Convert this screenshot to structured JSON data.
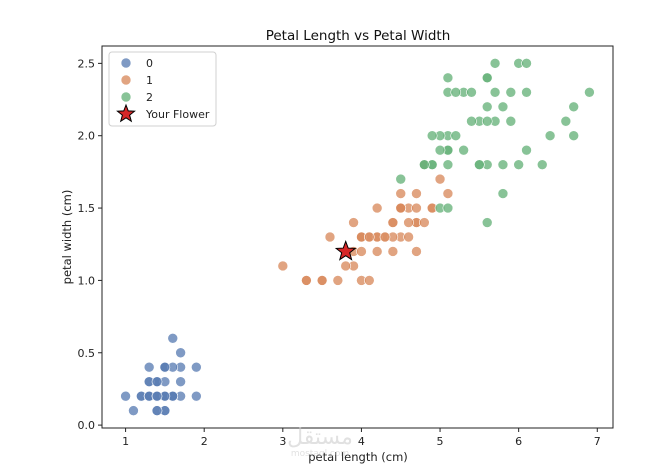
{
  "chart_data": {
    "type": "scatter",
    "title": "Petal Length vs Petal Width",
    "xlabel": "petal length (cm)",
    "ylabel": "petal width (cm)",
    "xlim": [
      0.7,
      7.2
    ],
    "ylim": [
      -0.02,
      2.62
    ],
    "xticks": [
      1,
      2,
      3,
      4,
      5,
      6,
      7
    ],
    "yticks": [
      0.0,
      0.5,
      1.0,
      1.5,
      2.0,
      2.5
    ],
    "xtick_labels": [
      "1",
      "2",
      "3",
      "4",
      "5",
      "6",
      "7"
    ],
    "ytick_labels": [
      "0.0",
      "0.5",
      "1.0",
      "1.5",
      "2.0",
      "2.5"
    ],
    "grid": false,
    "legend_position": "top-left",
    "series": [
      {
        "name": "0",
        "color": "#5b7db3",
        "points": [
          [
            1.4,
            0.2
          ],
          [
            1.4,
            0.2
          ],
          [
            1.3,
            0.2
          ],
          [
            1.5,
            0.2
          ],
          [
            1.4,
            0.2
          ],
          [
            1.7,
            0.4
          ],
          [
            1.4,
            0.3
          ],
          [
            1.5,
            0.2
          ],
          [
            1.4,
            0.2
          ],
          [
            1.5,
            0.1
          ],
          [
            1.5,
            0.2
          ],
          [
            1.6,
            0.2
          ],
          [
            1.4,
            0.1
          ],
          [
            1.1,
            0.1
          ],
          [
            1.2,
            0.2
          ],
          [
            1.5,
            0.4
          ],
          [
            1.3,
            0.4
          ],
          [
            1.4,
            0.3
          ],
          [
            1.7,
            0.3
          ],
          [
            1.5,
            0.3
          ],
          [
            1.7,
            0.2
          ],
          [
            1.5,
            0.4
          ],
          [
            1.0,
            0.2
          ],
          [
            1.7,
            0.5
          ],
          [
            1.9,
            0.2
          ],
          [
            1.6,
            0.2
          ],
          [
            1.6,
            0.4
          ],
          [
            1.5,
            0.2
          ],
          [
            1.4,
            0.2
          ],
          [
            1.6,
            0.2
          ],
          [
            1.6,
            0.2
          ],
          [
            1.5,
            0.4
          ],
          [
            1.5,
            0.1
          ],
          [
            1.4,
            0.2
          ],
          [
            1.5,
            0.2
          ],
          [
            1.2,
            0.2
          ],
          [
            1.3,
            0.2
          ],
          [
            1.4,
            0.1
          ],
          [
            1.3,
            0.2
          ],
          [
            1.5,
            0.2
          ],
          [
            1.3,
            0.3
          ],
          [
            1.3,
            0.3
          ],
          [
            1.3,
            0.2
          ],
          [
            1.6,
            0.6
          ],
          [
            1.9,
            0.4
          ],
          [
            1.4,
            0.3
          ],
          [
            1.6,
            0.2
          ],
          [
            1.4,
            0.2
          ],
          [
            1.5,
            0.2
          ],
          [
            1.4,
            0.2
          ]
        ]
      },
      {
        "name": "1",
        "color": "#d98a5e",
        "points": [
          [
            4.7,
            1.4
          ],
          [
            4.5,
            1.5
          ],
          [
            4.9,
            1.5
          ],
          [
            4.0,
            1.3
          ],
          [
            4.6,
            1.5
          ],
          [
            4.5,
            1.3
          ],
          [
            4.7,
            1.6
          ],
          [
            3.3,
            1.0
          ],
          [
            4.6,
            1.3
          ],
          [
            3.9,
            1.4
          ],
          [
            3.5,
            1.0
          ],
          [
            4.2,
            1.5
          ],
          [
            4.0,
            1.0
          ],
          [
            4.7,
            1.4
          ],
          [
            3.6,
            1.3
          ],
          [
            4.4,
            1.4
          ],
          [
            4.5,
            1.5
          ],
          [
            4.1,
            1.0
          ],
          [
            4.5,
            1.5
          ],
          [
            3.9,
            1.1
          ],
          [
            4.8,
            1.8
          ],
          [
            4.0,
            1.3
          ],
          [
            4.9,
            1.5
          ],
          [
            4.7,
            1.2
          ],
          [
            4.3,
            1.3
          ],
          [
            4.4,
            1.4
          ],
          [
            4.8,
            1.4
          ],
          [
            5.0,
            1.7
          ],
          [
            4.5,
            1.5
          ],
          [
            3.5,
            1.0
          ],
          [
            3.8,
            1.1
          ],
          [
            3.7,
            1.0
          ],
          [
            3.9,
            1.2
          ],
          [
            5.1,
            1.6
          ],
          [
            4.5,
            1.5
          ],
          [
            4.5,
            1.6
          ],
          [
            4.7,
            1.5
          ],
          [
            4.4,
            1.3
          ],
          [
            4.1,
            1.3
          ],
          [
            4.0,
            1.3
          ],
          [
            4.4,
            1.2
          ],
          [
            4.6,
            1.4
          ],
          [
            4.0,
            1.2
          ],
          [
            3.3,
            1.0
          ],
          [
            4.2,
            1.3
          ],
          [
            4.2,
            1.2
          ],
          [
            4.2,
            1.3
          ],
          [
            4.3,
            1.3
          ],
          [
            3.0,
            1.1
          ],
          [
            4.1,
            1.3
          ]
        ]
      },
      {
        "name": "2",
        "color": "#67b27a",
        "points": [
          [
            6.0,
            2.5
          ],
          [
            5.1,
            1.9
          ],
          [
            5.9,
            2.1
          ],
          [
            5.6,
            1.8
          ],
          [
            5.8,
            2.2
          ],
          [
            6.6,
            2.1
          ],
          [
            4.5,
            1.7
          ],
          [
            6.3,
            1.8
          ],
          [
            5.8,
            1.8
          ],
          [
            6.1,
            2.5
          ],
          [
            5.1,
            2.0
          ],
          [
            5.3,
            1.9
          ],
          [
            5.5,
            2.1
          ],
          [
            5.0,
            2.0
          ],
          [
            5.1,
            2.4
          ],
          [
            5.3,
            2.3
          ],
          [
            5.5,
            1.8
          ],
          [
            6.7,
            2.2
          ],
          [
            6.9,
            2.3
          ],
          [
            5.0,
            1.5
          ],
          [
            5.7,
            2.3
          ],
          [
            4.9,
            2.0
          ],
          [
            6.7,
            2.0
          ],
          [
            4.9,
            1.8
          ],
          [
            5.7,
            2.1
          ],
          [
            6.0,
            1.8
          ],
          [
            4.8,
            1.8
          ],
          [
            4.9,
            1.8
          ],
          [
            5.6,
            2.1
          ],
          [
            5.8,
            1.6
          ],
          [
            6.1,
            1.9
          ],
          [
            6.4,
            2.0
          ],
          [
            5.6,
            2.2
          ],
          [
            5.1,
            1.5
          ],
          [
            5.6,
            1.4
          ],
          [
            6.1,
            2.3
          ],
          [
            5.6,
            2.4
          ],
          [
            5.5,
            1.8
          ],
          [
            4.8,
            1.8
          ],
          [
            5.4,
            2.1
          ],
          [
            5.6,
            2.4
          ],
          [
            5.1,
            2.3
          ],
          [
            5.1,
            1.9
          ],
          [
            5.9,
            2.3
          ],
          [
            5.7,
            2.5
          ],
          [
            5.2,
            2.3
          ],
          [
            5.0,
            1.9
          ],
          [
            5.2,
            2.0
          ],
          [
            5.4,
            2.3
          ],
          [
            5.1,
            1.8
          ]
        ]
      }
    ],
    "highlight": {
      "name": "Your Flower",
      "x": 3.8,
      "y": 1.2,
      "marker": "star",
      "color": "#d62728",
      "edge_color": "#000000"
    }
  },
  "watermark": {
    "primary": "مستقل",
    "secondary": "mostaql.com"
  }
}
